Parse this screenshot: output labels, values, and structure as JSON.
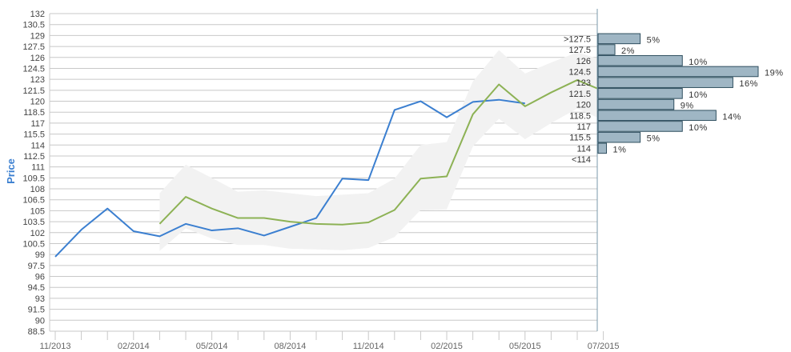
{
  "chart_data": {
    "type": "line",
    "ylabel": "Price",
    "ylim": [
      88.5,
      132
    ],
    "y_ticks": [
      "88.5",
      "90",
      "91.5",
      "93",
      "94.5",
      "96",
      "97.5",
      "99",
      "100.5",
      "102",
      "103.5",
      "105",
      "106.5",
      "108",
      "109.5",
      "111",
      "112.5",
      "114",
      "115.5",
      "117",
      "118.5",
      "120",
      "121.5",
      "123",
      "124.5",
      "126",
      "127.5",
      "129",
      "130.5",
      "132"
    ],
    "x_tick_labels": [
      "11/2013",
      "02/2014",
      "05/2014",
      "08/2014",
      "11/2014",
      "02/2015",
      "05/2015",
      "07/2015"
    ],
    "grid": true,
    "colors": {
      "price": "#3b7fd0",
      "forecast": "#8db255",
      "band": "#f2f2f2",
      "hist_fill": "#9fb6c4",
      "hist_stroke": "#2f4f5f",
      "grid": "#c8c8c8",
      "ylabel": "#3b7fd0"
    },
    "series": [
      {
        "id": "price",
        "points": [
          [
            0,
            98.7
          ],
          [
            1,
            102.4
          ],
          [
            2,
            105.3
          ],
          [
            3,
            102.2
          ],
          [
            4,
            101.5
          ],
          [
            5,
            103.2
          ],
          [
            6,
            102.3
          ],
          [
            7,
            102.6
          ],
          [
            8,
            101.6
          ],
          [
            9,
            102.8
          ],
          [
            10,
            104
          ],
          [
            11,
            109.4
          ],
          [
            12,
            109.2
          ],
          [
            13,
            118.8
          ],
          [
            14,
            120
          ],
          [
            15,
            117.8
          ],
          [
            16,
            119.9
          ],
          [
            17,
            120.2
          ],
          [
            18,
            119.7
          ]
        ]
      },
      {
        "id": "forecast",
        "points": [
          [
            4,
            103.2
          ],
          [
            5,
            106.9
          ],
          [
            6,
            105.3
          ],
          [
            7,
            104
          ],
          [
            8,
            104
          ],
          [
            9,
            103.5
          ],
          [
            10,
            103.2
          ],
          [
            11,
            103.1
          ],
          [
            12,
            103.4
          ],
          [
            13,
            105.1
          ],
          [
            14,
            109.4
          ],
          [
            15,
            109.7
          ],
          [
            16,
            118.2
          ],
          [
            17,
            122.3
          ],
          [
            18,
            119.3
          ],
          [
            19,
            121.2
          ],
          [
            20,
            122.9
          ],
          [
            21,
            121.4
          ]
        ]
      }
    ],
    "band": {
      "upper": [
        [
          4,
          107.4
        ],
        [
          5,
          111.3
        ],
        [
          6,
          109.5
        ],
        [
          7,
          107.6
        ],
        [
          8,
          107.8
        ],
        [
          9,
          107.4
        ],
        [
          10,
          107
        ],
        [
          11,
          107.2
        ],
        [
          12,
          107.4
        ],
        [
          13,
          109.4
        ],
        [
          14,
          114
        ],
        [
          15,
          114.4
        ],
        [
          16,
          122.7
        ],
        [
          17,
          127
        ],
        [
          18,
          123.8
        ],
        [
          19,
          125.3
        ],
        [
          20,
          126.7
        ],
        [
          21,
          125.6
        ]
      ],
      "lower": [
        [
          4,
          99.5
        ],
        [
          5,
          102.6
        ],
        [
          6,
          101.2
        ],
        [
          7,
          100.3
        ],
        [
          8,
          100.3
        ],
        [
          9,
          99.8
        ],
        [
          10,
          99.7
        ],
        [
          11,
          99.6
        ],
        [
          12,
          99.9
        ],
        [
          13,
          101.4
        ],
        [
          14,
          105.1
        ],
        [
          15,
          105.2
        ],
        [
          16,
          113.8
        ],
        [
          17,
          117.6
        ],
        [
          18,
          114.8
        ],
        [
          19,
          117
        ],
        [
          20,
          119
        ],
        [
          21,
          117.4
        ]
      ]
    },
    "histogram": [
      {
        "label": ">127.5",
        "pct": 5,
        "pct_label": "5%"
      },
      {
        "label": "127.5",
        "pct": 2,
        "pct_label": "2%"
      },
      {
        "label": "126",
        "pct": 10,
        "pct_label": "10%"
      },
      {
        "label": "124.5",
        "pct": 19,
        "pct_label": "19%"
      },
      {
        "label": "123",
        "pct": 16,
        "pct_label": "16%"
      },
      {
        "label": "121.5",
        "pct": 10,
        "pct_label": "10%"
      },
      {
        "label": "120",
        "pct": 9,
        "pct_label": "9%"
      },
      {
        "label": "118.5",
        "pct": 14,
        "pct_label": "14%"
      },
      {
        "label": "117",
        "pct": 10,
        "pct_label": "10%"
      },
      {
        "label": "115.5",
        "pct": 5,
        "pct_label": "5%"
      },
      {
        "label": "114",
        "pct": 1,
        "pct_label": "1%"
      },
      {
        "label": "<114",
        "pct": 0,
        "pct_label": ""
      }
    ]
  }
}
